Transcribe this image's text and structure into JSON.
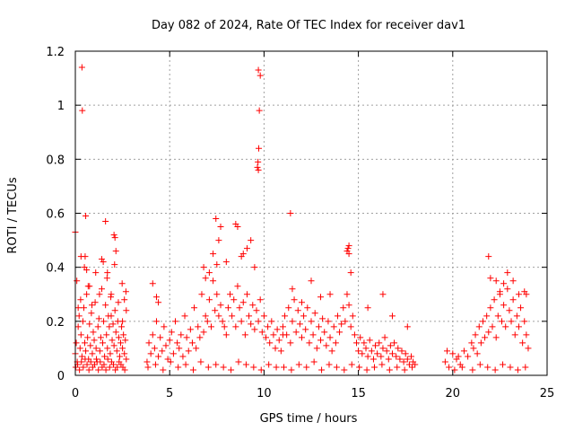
{
  "chart_data": {
    "type": "scatter",
    "title": "Day 082 of 2024, Rate Of TEC Index for receiver dav1",
    "xlabel": "GPS time / hours",
    "ylabel": "ROTI / TECUs",
    "xlim": [
      0,
      25
    ],
    "ylim": [
      0,
      1.2
    ],
    "xticks": [
      0,
      5,
      10,
      15,
      20,
      25
    ],
    "xtick_labels": [
      "0",
      "5",
      "10",
      "15",
      "20",
      "25"
    ],
    "yticks": [
      0,
      0.2,
      0.4,
      0.6,
      0.8,
      1,
      1.2
    ],
    "ytick_labels": [
      "0",
      "0.2",
      "0.4",
      "0.6",
      "0.8",
      "1",
      "1.2"
    ],
    "grid": true,
    "marker": "+",
    "color": "#ff0000",
    "series": [
      {
        "x": [
          0.0,
          0.05,
          0.1,
          0.15,
          0.2,
          0.25,
          0.3,
          0.35,
          0.4,
          0.45,
          0.5,
          0.55,
          0.6,
          0.65,
          0.7,
          0.75,
          0.8,
          0.85,
          0.9,
          0.95,
          1.0,
          1.05,
          1.1,
          1.15,
          1.2,
          1.25,
          1.3,
          1.35,
          1.4,
          1.45,
          1.5,
          1.55,
          1.6,
          1.65,
          1.7,
          1.75,
          1.8,
          1.85,
          1.9,
          1.95,
          2.0,
          2.05,
          2.1,
          2.15,
          2.2,
          2.25,
          2.3,
          2.35,
          2.4,
          2.45,
          2.5,
          2.55,
          2.6,
          2.65,
          2.7,
          0.02,
          0.12,
          0.22,
          0.32,
          0.42,
          0.52,
          0.62,
          0.72,
          0.82,
          0.92,
          1.02,
          1.12,
          1.22,
          1.32,
          1.42,
          1.52,
          1.62,
          1.72,
          1.82,
          1.92,
          2.02,
          2.12,
          2.22,
          2.32,
          2.42,
          2.52,
          2.62,
          0.08,
          0.28,
          0.48,
          0.68,
          0.88,
          1.08,
          1.28,
          1.48,
          1.68,
          1.88,
          2.08,
          2.28,
          2.48,
          2.68,
          0.0,
          0.35,
          0.37,
          0.52,
          0.55,
          1.6,
          2.05,
          2.1,
          0.6,
          0.3,
          1.4,
          1.7,
          2.15,
          0.15,
          0.75,
          1.9,
          2.5,
          2.6,
          2.7
        ],
        "y": [
          0.08,
          0.12,
          0.05,
          0.18,
          0.22,
          0.1,
          0.15,
          0.07,
          0.2,
          0.25,
          0.12,
          0.09,
          0.3,
          0.14,
          0.06,
          0.19,
          0.11,
          0.23,
          0.08,
          0.16,
          0.13,
          0.27,
          0.1,
          0.05,
          0.18,
          0.21,
          0.09,
          0.14,
          0.32,
          0.12,
          0.2,
          0.07,
          0.26,
          0.15,
          0.1,
          0.22,
          0.18,
          0.08,
          0.3,
          0.13,
          0.19,
          0.11,
          0.24,
          0.16,
          0.09,
          0.2,
          0.14,
          0.07,
          0.12,
          0.18,
          0.1,
          0.15,
          0.08,
          0.13,
          0.06,
          0.03,
          0.04,
          0.02,
          0.05,
          0.03,
          0.06,
          0.04,
          0.02,
          0.05,
          0.03,
          0.04,
          0.06,
          0.02,
          0.05,
          0.03,
          0.04,
          0.02,
          0.06,
          0.03,
          0.05,
          0.04,
          0.02,
          0.03,
          0.05,
          0.04,
          0.03,
          0.02,
          0.35,
          0.28,
          0.4,
          0.33,
          0.26,
          0.38,
          0.3,
          0.42,
          0.36,
          0.29,
          0.41,
          0.27,
          0.34,
          0.31,
          0.53,
          1.14,
          0.98,
          0.44,
          0.59,
          0.57,
          0.52,
          0.51,
          0.39,
          0.44,
          0.43,
          0.38,
          0.46,
          0.25,
          0.33,
          0.22,
          0.2,
          0.28,
          0.24
        ]
      },
      {
        "x": [
          3.8,
          3.9,
          4.0,
          4.1,
          4.2,
          4.3,
          4.4,
          4.5,
          4.6,
          4.7,
          4.8,
          4.9,
          5.0,
          5.1,
          5.2,
          5.3,
          5.4,
          5.5,
          5.6,
          5.7,
          5.8,
          5.9,
          6.0,
          6.1,
          6.2,
          6.3,
          6.4,
          6.5,
          6.6,
          6.7,
          6.8,
          6.9,
          7.0,
          7.1,
          7.2,
          7.3,
          7.4,
          7.5,
          7.6,
          7.7,
          7.8,
          7.9,
          8.0,
          8.1,
          8.2,
          8.3,
          8.4,
          8.5,
          8.6,
          8.7,
          8.8,
          8.9,
          9.0,
          9.1,
          9.2,
          9.3,
          9.4,
          9.5,
          9.6,
          9.7,
          9.8,
          9.9,
          10.0,
          10.1,
          10.2,
          10.3,
          10.4,
          10.5,
          10.6,
          10.7,
          10.8,
          10.9,
          11.0,
          3.85,
          4.25,
          4.65,
          5.05,
          5.45,
          5.85,
          6.25,
          6.65,
          7.05,
          7.45,
          7.85,
          8.25,
          8.65,
          9.05,
          9.45,
          9.85,
          10.25,
          10.65,
          4.1,
          4.3,
          6.8,
          7.1,
          7.3,
          7.45,
          7.6,
          7.7,
          8.0,
          8.5,
          8.6,
          8.9,
          9.1,
          9.3,
          9.7,
          9.8,
          9.75,
          9.72,
          9.68,
          9.7,
          9.65,
          4.4,
          6.9,
          7.5,
          8.8,
          9.5
        ],
        "y": [
          0.05,
          0.12,
          0.08,
          0.15,
          0.1,
          0.2,
          0.07,
          0.14,
          0.09,
          0.18,
          0.11,
          0.06,
          0.13,
          0.16,
          0.08,
          0.2,
          0.12,
          0.1,
          0.15,
          0.07,
          0.22,
          0.14,
          0.09,
          0.17,
          0.12,
          0.25,
          0.1,
          0.18,
          0.14,
          0.3,
          0.16,
          0.22,
          0.2,
          0.28,
          0.18,
          0.35,
          0.24,
          0.3,
          0.22,
          0.26,
          0.2,
          0.18,
          0.15,
          0.25,
          0.3,
          0.22,
          0.28,
          0.18,
          0.33,
          0.25,
          0.2,
          0.27,
          0.15,
          0.3,
          0.22,
          0.19,
          0.26,
          0.17,
          0.24,
          0.2,
          0.28,
          0.16,
          0.22,
          0.14,
          0.18,
          0.12,
          0.2,
          0.15,
          0.1,
          0.17,
          0.13,
          0.09,
          0.15,
          0.03,
          0.04,
          0.02,
          0.05,
          0.03,
          0.04,
          0.02,
          0.05,
          0.03,
          0.04,
          0.03,
          0.02,
          0.05,
          0.04,
          0.03,
          0.02,
          0.04,
          0.03,
          0.34,
          0.29,
          0.4,
          0.38,
          0.45,
          0.58,
          0.5,
          0.55,
          0.42,
          0.56,
          0.55,
          0.45,
          0.47,
          0.5,
          1.13,
          1.11,
          0.98,
          0.84,
          0.79,
          0.76,
          0.77,
          0.27,
          0.36,
          0.41,
          0.44,
          0.4
        ]
      },
      {
        "x": [
          11.0,
          11.1,
          11.2,
          11.3,
          11.4,
          11.5,
          11.6,
          11.7,
          11.8,
          11.9,
          12.0,
          12.1,
          12.2,
          12.3,
          12.4,
          12.5,
          12.6,
          12.7,
          12.8,
          12.9,
          13.0,
          13.1,
          13.2,
          13.3,
          13.4,
          13.5,
          13.6,
          13.7,
          13.8,
          13.9,
          14.0,
          14.1,
          14.2,
          14.3,
          14.4,
          14.5,
          14.6,
          14.7,
          14.8,
          14.9,
          15.0,
          15.1,
          15.2,
          15.3,
          15.4,
          15.5,
          15.6,
          15.7,
          15.8,
          15.9,
          16.0,
          16.1,
          16.2,
          16.3,
          16.4,
          16.5,
          16.6,
          16.7,
          16.8,
          16.9,
          17.0,
          17.1,
          17.2,
          17.3,
          17.4,
          17.5,
          17.6,
          17.7,
          17.8,
          17.9,
          18.0,
          11.05,
          11.45,
          11.85,
          12.25,
          12.65,
          13.05,
          13.45,
          13.85,
          14.25,
          14.65,
          15.05,
          15.45,
          15.85,
          16.25,
          16.65,
          17.05,
          17.45,
          17.85,
          11.4,
          11.5,
          12.0,
          12.5,
          13.0,
          13.5,
          14.4,
          14.45,
          14.5,
          14.5,
          14.6,
          15.5,
          16.3,
          16.8,
          17.6
        ],
        "y": [
          0.18,
          0.22,
          0.15,
          0.25,
          0.12,
          0.2,
          0.28,
          0.16,
          0.24,
          0.19,
          0.14,
          0.22,
          0.17,
          0.25,
          0.12,
          0.2,
          0.15,
          0.23,
          0.1,
          0.18,
          0.13,
          0.21,
          0.16,
          0.11,
          0.2,
          0.14,
          0.09,
          0.18,
          0.12,
          0.22,
          0.16,
          0.19,
          0.25,
          0.2,
          0.3,
          0.26,
          0.18,
          0.22,
          0.15,
          0.12,
          0.09,
          0.14,
          0.08,
          0.12,
          0.1,
          0.07,
          0.13,
          0.09,
          0.06,
          0.11,
          0.08,
          0.12,
          0.07,
          0.1,
          0.14,
          0.09,
          0.06,
          0.11,
          0.08,
          0.12,
          0.07,
          0.1,
          0.06,
          0.09,
          0.05,
          0.08,
          0.06,
          0.04,
          0.07,
          0.05,
          0.04,
          0.03,
          0.02,
          0.04,
          0.03,
          0.05,
          0.02,
          0.04,
          0.03,
          0.02,
          0.04,
          0.03,
          0.02,
          0.03,
          0.04,
          0.02,
          0.03,
          0.02,
          0.03,
          0.6,
          0.32,
          0.27,
          0.35,
          0.29,
          0.3,
          0.46,
          0.47,
          0.48,
          0.45,
          0.38,
          0.25,
          0.3,
          0.22,
          0.18
        ]
      },
      {
        "x": [
          19.6,
          19.8,
          20.0,
          20.2,
          20.4,
          20.6,
          20.8,
          21.0,
          21.1,
          21.2,
          21.3,
          21.4,
          21.5,
          21.6,
          21.7,
          21.8,
          21.9,
          22.0,
          22.1,
          22.2,
          22.3,
          22.4,
          22.5,
          22.6,
          22.7,
          22.8,
          22.9,
          23.0,
          23.1,
          23.2,
          23.3,
          23.4,
          23.5,
          23.6,
          23.7,
          23.8,
          23.9,
          24.0,
          20.1,
          20.5,
          21.05,
          21.45,
          21.85,
          22.25,
          22.65,
          23.05,
          23.45,
          23.85,
          21.9,
          22.0,
          22.3,
          22.5,
          22.7,
          22.9,
          23.2,
          23.5,
          23.8,
          23.9,
          19.7,
          20.3
        ],
        "y": [
          0.05,
          0.03,
          0.08,
          0.06,
          0.04,
          0.09,
          0.07,
          0.12,
          0.1,
          0.15,
          0.08,
          0.18,
          0.12,
          0.2,
          0.14,
          0.22,
          0.16,
          0.25,
          0.18,
          0.28,
          0.14,
          0.22,
          0.3,
          0.2,
          0.26,
          0.18,
          0.32,
          0.24,
          0.2,
          0.28,
          0.15,
          0.22,
          0.18,
          0.25,
          0.12,
          0.2,
          0.15,
          0.1,
          0.02,
          0.03,
          0.02,
          0.04,
          0.03,
          0.02,
          0.04,
          0.03,
          0.02,
          0.03,
          0.44,
          0.36,
          0.35,
          0.31,
          0.34,
          0.38,
          0.35,
          0.3,
          0.31,
          0.3,
          0.09,
          0.07
        ]
      }
    ]
  }
}
